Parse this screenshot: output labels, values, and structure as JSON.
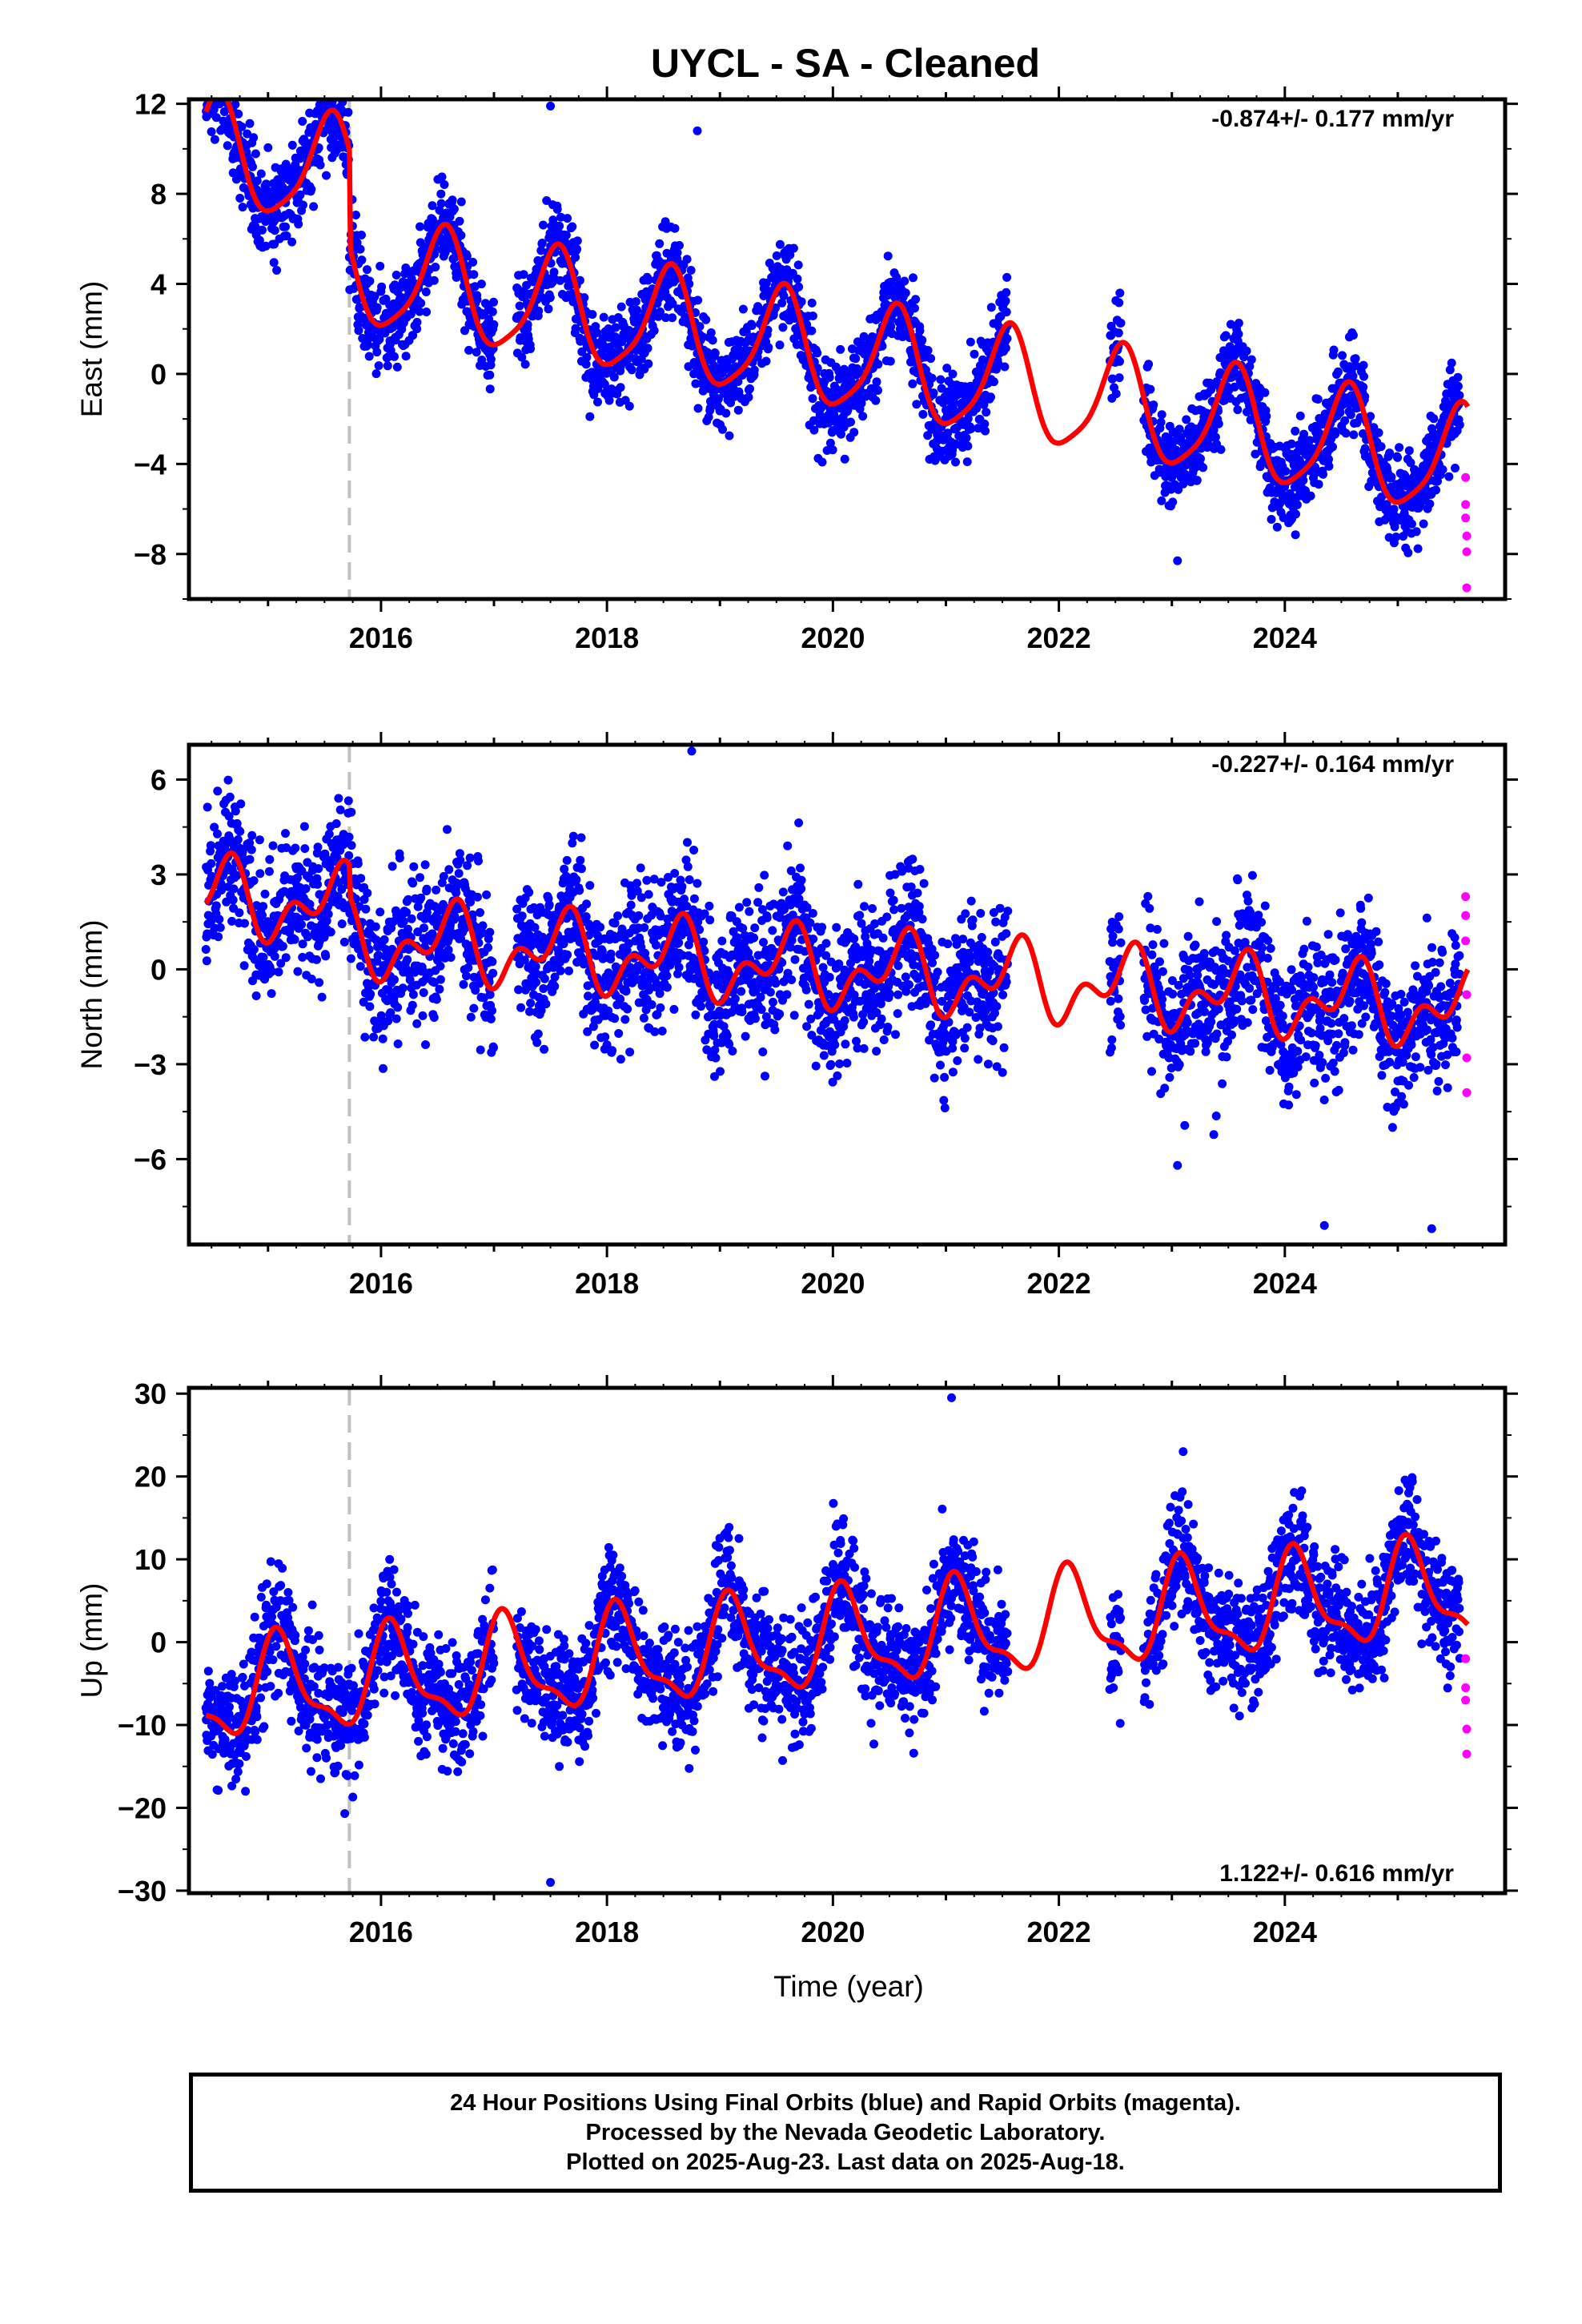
{
  "title": "UYCL  - SA - Cleaned",
  "footer": {
    "line1": "24 Hour Positions Using Final Orbits (blue) and Rapid Orbits (magenta).",
    "line2": "Processed by the Nevada Geodetic Laboratory.",
    "line3": "Plotted on 2025-Aug-23. Last data on 2025-Aug-18."
  },
  "colors": {
    "final": "#0000ff",
    "rapid": "#ff00ff",
    "model": "#ff0000",
    "offset": "#c0c0c0"
  },
  "chart_data": [
    {
      "type": "scatter",
      "component": "east",
      "ylabel": "East (mm)",
      "xlabel": "",
      "xlim": [
        2014.3,
        2025.95
      ],
      "ylim": [
        -10,
        12.2
      ],
      "xticks": [
        2016,
        2018,
        2020,
        2022,
        2024
      ],
      "yticks": [
        -8,
        -4,
        0,
        4,
        8,
        12
      ],
      "ytick_labels": [
        "−8",
        "−4",
        "0",
        "4",
        "8",
        "12"
      ],
      "rate": "-0.874+/- 0.177 mm/yr",
      "rate_position": "top-right",
      "equipment_change": 2015.72,
      "model": {
        "intercept_2020": 0.8,
        "annual_amp": 2.4,
        "annual_peak": 0.55,
        "semi_amp": 0.5,
        "semi_phase": 0.1,
        "offset_epoch": 2015.72,
        "offset_size": -4.2
      },
      "noise_sd": 1.0,
      "final_spans": [
        [
          2014.45,
          2017.0
        ],
        [
          2017.2,
          2021.55
        ],
        [
          2022.45,
          2022.55
        ],
        [
          2022.75,
          2025.55
        ]
      ],
      "outliers": [
        [
          2017.5,
          11.9
        ],
        [
          2018.8,
          10.8
        ],
        [
          2023.05,
          -8.3
        ]
      ],
      "rapid_points": [
        [
          2025.6,
          -4.6
        ],
        [
          2025.6,
          -5.8
        ],
        [
          2025.6,
          -6.4
        ],
        [
          2025.61,
          -7.2
        ],
        [
          2025.61,
          -7.9
        ],
        [
          2025.61,
          -9.5
        ]
      ]
    },
    {
      "type": "scatter",
      "component": "north",
      "ylabel": "North (mm)",
      "xlabel": "",
      "xlim": [
        2014.3,
        2025.95
      ],
      "ylim": [
        -8.7,
        7.1
      ],
      "xticks": [
        2016,
        2018,
        2020,
        2022,
        2024
      ],
      "yticks": [
        -6,
        -3,
        0,
        3,
        6
      ],
      "ytick_labels": [
        "−6",
        "−3",
        "0",
        "3",
        "6"
      ],
      "rate": "-0.227+/- 0.164 mm/yr",
      "rate_position": "top-right",
      "equipment_change": 2015.72,
      "model": {
        "intercept_2020": 0.0,
        "annual_amp": 0.9,
        "annual_peak": 0.6,
        "semi_amp": 0.7,
        "semi_phase": 0.2,
        "offset_epoch": 2015.72,
        "offset_size": -1.0
      },
      "noise_sd": 1.1,
      "final_spans": [
        [
          2014.45,
          2017.0
        ],
        [
          2017.2,
          2021.55
        ],
        [
          2022.45,
          2022.55
        ],
        [
          2022.75,
          2025.55
        ]
      ],
      "outliers": [
        [
          2018.75,
          6.9
        ],
        [
          2024.35,
          -8.1
        ],
        [
          2025.3,
          -8.2
        ],
        [
          2023.05,
          -6.2
        ]
      ],
      "rapid_points": [
        [
          2025.6,
          2.3
        ],
        [
          2025.6,
          1.7
        ],
        [
          2025.6,
          0.9
        ],
        [
          2025.61,
          -0.8
        ],
        [
          2025.61,
          -2.8
        ],
        [
          2025.61,
          -3.9
        ]
      ]
    },
    {
      "type": "scatter",
      "component": "up",
      "ylabel": "Up (mm)",
      "xlabel": "Time (year)",
      "xlim": [
        2014.3,
        2025.95
      ],
      "ylim": [
        -30.3,
        30.7
      ],
      "xticks": [
        2016,
        2018,
        2020,
        2022,
        2024
      ],
      "yticks": [
        -30,
        -20,
        -10,
        0,
        10,
        20,
        30
      ],
      "ytick_labels": [
        "−30",
        "−20",
        "−10",
        "0",
        "10",
        "20",
        "30"
      ],
      "rate": "1.122+/- 0.616 mm/yr",
      "rate_position": "bottom-right",
      "equipment_change": 2015.72,
      "model": {
        "intercept_2020": 0.0,
        "annual_amp": 5.5,
        "annual_peak": 0.1,
        "semi_amp": 2.0,
        "semi_phase": 0.05,
        "offset_epoch": 2015.72,
        "offset_size": 0.0
      },
      "noise_sd": 3.5,
      "final_spans": [
        [
          2014.45,
          2017.0
        ],
        [
          2017.2,
          2021.55
        ],
        [
          2022.45,
          2022.55
        ],
        [
          2022.75,
          2025.55
        ]
      ],
      "outliers": [
        [
          2021.05,
          29.5
        ],
        [
          2017.5,
          -29.0
        ],
        [
          2023.1,
          23.0
        ]
      ],
      "rapid_points": [
        [
          2025.6,
          -2.0
        ],
        [
          2025.6,
          -5.5
        ],
        [
          2025.6,
          -7.0
        ],
        [
          2025.61,
          -10.5
        ],
        [
          2025.61,
          -13.5
        ]
      ]
    }
  ]
}
